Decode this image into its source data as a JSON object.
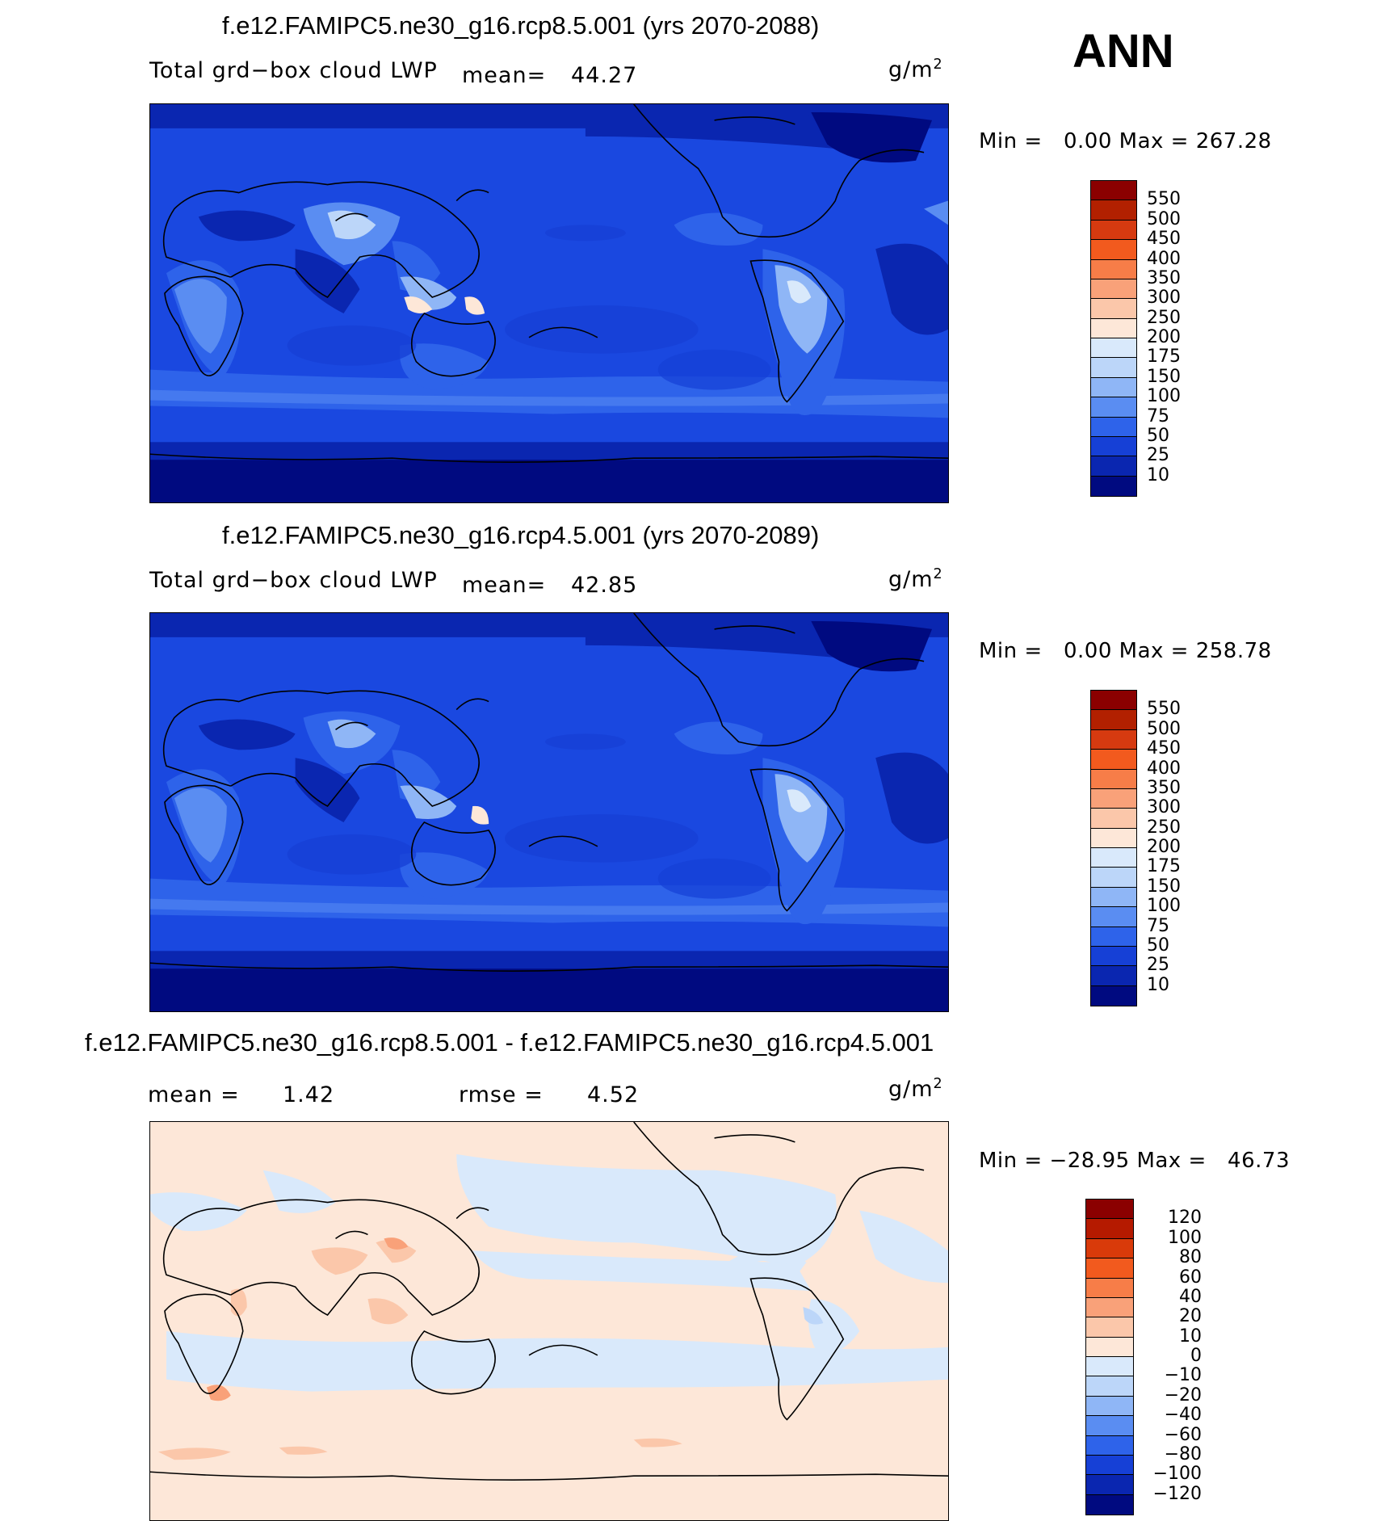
{
  "season": "ANN",
  "panels": [
    {
      "title": "f.e12.FAMIPC5.ne30_g16.rcp8.5.001 (yrs 2070-2088)",
      "variable": "Total grd−box cloud LWP",
      "mean_label": "mean=",
      "mean_value": "44.27",
      "units": "g/m",
      "units_exp": "2",
      "min_label": "Min =",
      "min_value": "0.00",
      "max_label": "Max =",
      "max_value": "267.28",
      "colorbar_labels": [
        "550",
        "500",
        "450",
        "400",
        "350",
        "300",
        "250",
        "200",
        "175",
        "150",
        "100",
        "75",
        "50",
        "25",
        "10"
      ],
      "colorbar_colors": [
        "#8b0000",
        "#b22000",
        "#d63a10",
        "#f25a1e",
        "#f77d48",
        "#f9a179",
        "#fbc7aa",
        "#fde7d8",
        "#d9e9fb",
        "#bcd6f9",
        "#8fb6f6",
        "#5a8df2",
        "#2e63ea",
        "#1640d6",
        "#0a26b0",
        "#000a80"
      ]
    },
    {
      "title": "f.e12.FAMIPC5.ne30_g16.rcp4.5.001 (yrs 2070-2089)",
      "variable": "Total grd−box cloud LWP",
      "mean_label": "mean=",
      "mean_value": "42.85",
      "units": "g/m",
      "units_exp": "2",
      "min_label": "Min =",
      "min_value": "0.00",
      "max_label": "Max =",
      "max_value": "258.78",
      "colorbar_labels": [
        "550",
        "500",
        "450",
        "400",
        "350",
        "300",
        "250",
        "200",
        "175",
        "150",
        "100",
        "75",
        "50",
        "25",
        "10"
      ],
      "colorbar_colors": [
        "#8b0000",
        "#b22000",
        "#d63a10",
        "#f25a1e",
        "#f77d48",
        "#f9a179",
        "#fbc7aa",
        "#fde7d8",
        "#d9e9fb",
        "#bcd6f9",
        "#8fb6f6",
        "#5a8df2",
        "#2e63ea",
        "#1640d6",
        "#0a26b0",
        "#000a80"
      ]
    },
    {
      "title": "f.e12.FAMIPC5.ne30_g16.rcp8.5.001 - f.e12.FAMIPC5.ne30_g16.rcp4.5.001",
      "mean_label": "mean =",
      "mean_value": "1.42",
      "rmse_label": "rmse =",
      "rmse_value": "4.52",
      "units": "g/m",
      "units_exp": "2",
      "min_label": "Min =",
      "min_value": "−28.95",
      "max_label": "Max =",
      "max_value": "46.73",
      "colorbar_labels": [
        "120",
        "100",
        "80",
        "60",
        "40",
        "20",
        "10",
        "0",
        "−10",
        "−20",
        "−40",
        "−60",
        "−80",
        "−100",
        "−120"
      ],
      "colorbar_colors": [
        "#8b0000",
        "#b51a00",
        "#d93a0a",
        "#f25a1e",
        "#f77d48",
        "#f9a179",
        "#fbc7aa",
        "#fde7d8",
        "#d9e9fb",
        "#bcd6f9",
        "#8fb6f6",
        "#5a8df2",
        "#2e63ea",
        "#1640d6",
        "#0a26b0",
        "#000a80"
      ]
    }
  ]
}
